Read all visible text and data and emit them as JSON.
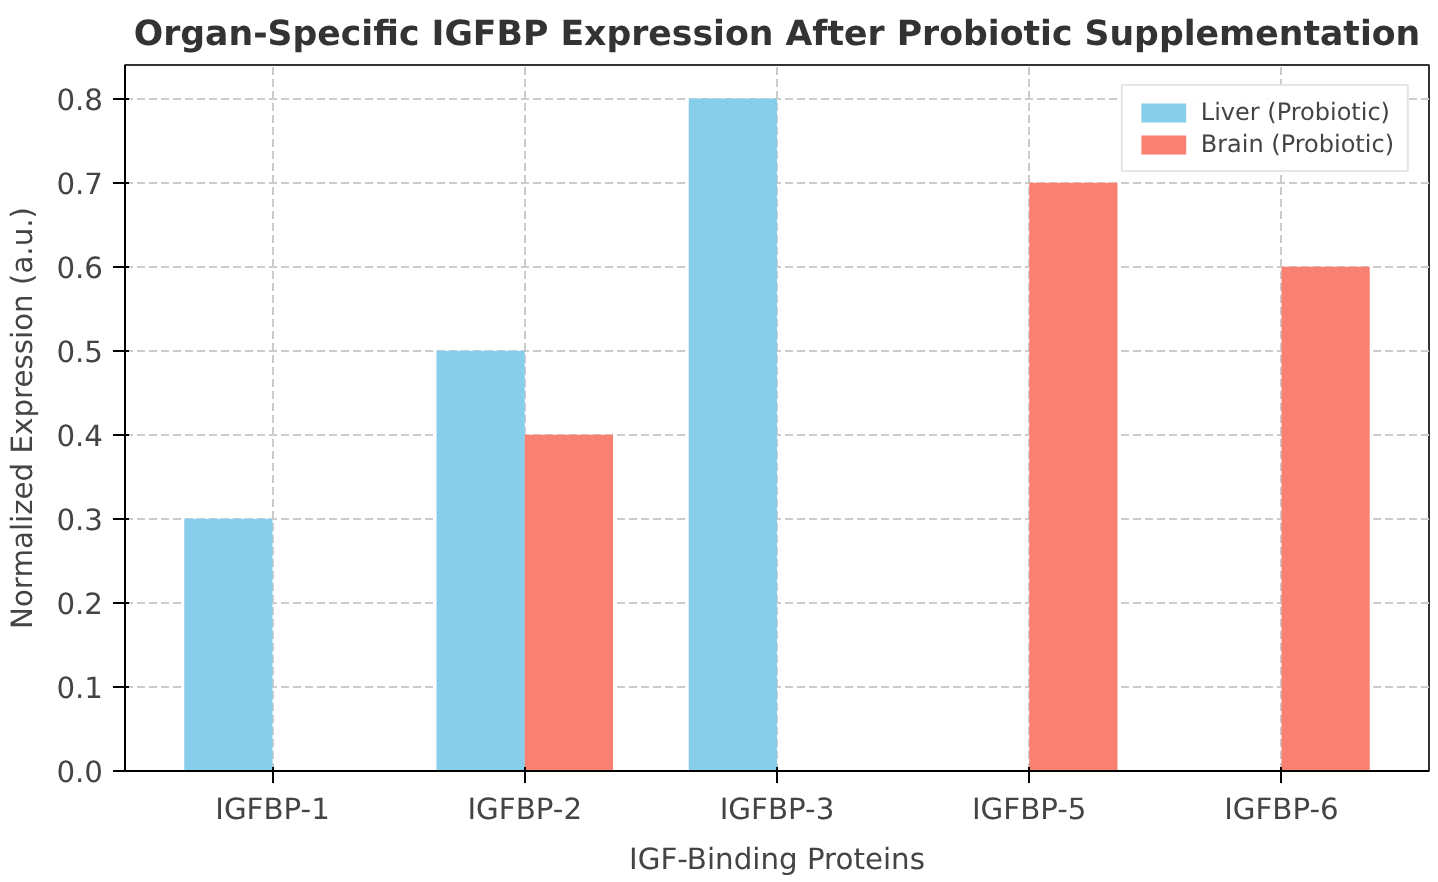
{
  "chart_data": {
    "type": "bar",
    "title": "Organ-Specific IGFBP Expression After Probiotic Supplementation",
    "xlabel": "IGF-Binding Proteins",
    "ylabel": "Normalized Expression (a.u.)",
    "categories": [
      "IGFBP-1",
      "IGFBP-2",
      "IGFBP-3",
      "IGFBP-5",
      "IGFBP-6"
    ],
    "series": [
      {
        "name": "Liver (Probiotic)",
        "color": "#87ceeb",
        "values": [
          0.3,
          0.5,
          0.8,
          0,
          0
        ]
      },
      {
        "name": "Brain (Probiotic)",
        "color": "#fa8072",
        "values": [
          0,
          0.4,
          0,
          0.7,
          0.6
        ]
      }
    ],
    "ylim": [
      0,
      0.84
    ],
    "yticks": [
      {
        "value": 0,
        "label": "0.0"
      },
      0.1,
      0.2,
      0.3,
      0.4,
      0.5,
      0.6,
      0.7,
      0.8
    ],
    "grid": true,
    "legend": "top right"
  }
}
